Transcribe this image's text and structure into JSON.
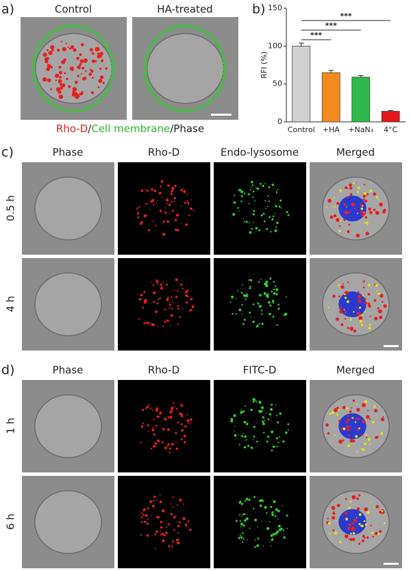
{
  "panel_a": {
    "label": "a)",
    "columns": [
      "Control",
      "HA-treated"
    ],
    "caption": [
      {
        "text": "Rho-D",
        "color": "#e02020"
      },
      {
        "text": "/",
        "color": "#222222"
      },
      {
        "text": "Cell membrane",
        "color": "#2db52d"
      },
      {
        "text": "/Phase",
        "color": "#222222"
      }
    ]
  },
  "chart_data": {
    "type": "bar",
    "label": "b)",
    "ylabel": "RFI (%)",
    "categories": [
      "Control",
      "+HA",
      "+NaN₃",
      "4°C"
    ],
    "values": [
      100,
      65,
      59,
      14
    ],
    "errors": [
      4,
      3,
      2,
      1
    ],
    "colors": [
      "#d0d0d0",
      "#f28a1e",
      "#2cb84a",
      "#e8141c"
    ],
    "ylim": [
      0,
      150
    ],
    "yticks": [
      0,
      50,
      100,
      150
    ],
    "annotations": [
      {
        "text": "***",
        "from": 0,
        "to": 1
      },
      {
        "text": "***",
        "from": 0,
        "to": 2
      },
      {
        "text": "***",
        "from": 0,
        "to": 3
      }
    ]
  },
  "panel_c": {
    "label": "c)",
    "columns": [
      {
        "text": "Phase",
        "color": "#222222"
      },
      {
        "text": "Rho-D",
        "color": "#e02020"
      },
      {
        "text": "Endo-lysosome",
        "color": "#2db52d"
      },
      {
        "text": "Merged",
        "color": "#222222"
      }
    ],
    "rows": [
      "0.5 h",
      "4 h"
    ]
  },
  "panel_d": {
    "label": "d)",
    "columns": [
      {
        "text": "Phase",
        "color": "#222222"
      },
      {
        "text": "Rho-D",
        "color": "#e02020"
      },
      {
        "text": "FITC-D",
        "color": "#2db52d"
      },
      {
        "text": "Merged",
        "color": "#222222"
      }
    ],
    "rows": [
      "1 h",
      "6 h"
    ]
  }
}
